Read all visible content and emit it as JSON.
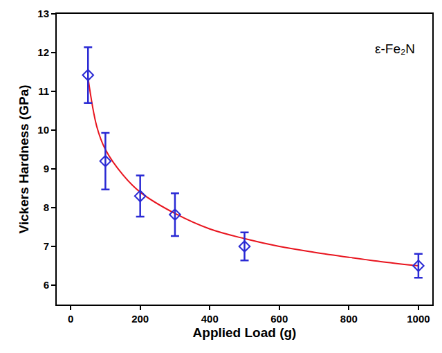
{
  "chart_data": {
    "type": "scatter",
    "x_label": "Applied Load (g)",
    "y_label": "Vickers Hardness (GPa)",
    "annotations": [
      "ε-Fe₂N"
    ],
    "xlim": [
      -40,
      1040
    ],
    "xticks": [
      0,
      200,
      400,
      600,
      800,
      1000
    ],
    "ylim": [
      5.5,
      13
    ],
    "yticks": [
      6,
      7,
      8,
      9,
      10,
      11,
      12,
      13
    ],
    "grid": false,
    "series": [
      {
        "type": "scatter",
        "color": "#2a2ad4",
        "marker": "diamond-open",
        "x": [
          50,
          100,
          200,
          300,
          500,
          1000
        ],
        "values": [
          11.42,
          9.2,
          8.3,
          7.82,
          7.0,
          6.5
        ],
        "error": [
          0.72,
          0.73,
          0.53,
          0.55,
          0.36,
          0.31
        ]
      },
      {
        "type": "line",
        "color": "#e8141e",
        "line_style": "solid",
        "x": [
          50,
          75,
          100,
          150,
          200,
          300,
          400,
          500,
          600,
          700,
          800,
          900,
          1000
        ],
        "values": [
          11.35,
          10.1,
          9.5,
          8.85,
          8.4,
          7.85,
          7.45,
          7.2,
          7.0,
          6.85,
          6.72,
          6.6,
          6.5
        ]
      }
    ]
  }
}
